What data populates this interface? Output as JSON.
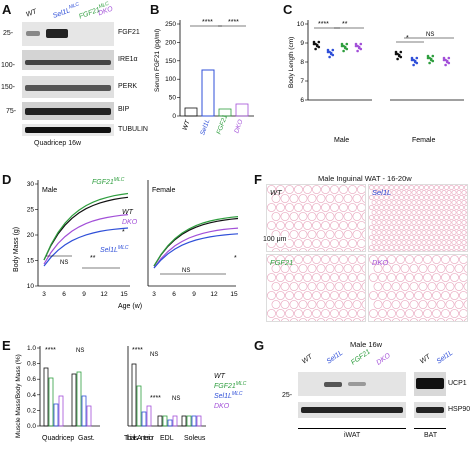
{
  "panel_letters": [
    "A",
    "B",
    "C",
    "D",
    "F",
    "E",
    "G"
  ],
  "colors": {
    "wt": "#111111",
    "fgf21": "#2e9e3e",
    "sel1l": "#2f4fd8",
    "dko": "#a24fd8",
    "pink": "#f2c8d8"
  },
  "panelA": {
    "groups": [
      "WT",
      "Sel1L",
      "FGF21",
      "DKO"
    ],
    "group_sup": [
      "",
      "MLC",
      "MLC",
      ""
    ],
    "mw": [
      "25-",
      "100-",
      "150-",
      "75-",
      ""
    ],
    "bands": [
      "FGF21",
      "IRE1α",
      "PERK",
      "BIP",
      "TUBULIN"
    ],
    "caption": "Quadricep 16w"
  },
  "panelB": {
    "ylabel": "Serum FGF21 (pg/ml)",
    "ticks": [
      "0",
      "50",
      "100",
      "150",
      "200",
      "250"
    ],
    "sig": [
      "****",
      "****"
    ],
    "groups": [
      "WT",
      "Sel1L",
      "FGF21",
      "DKO"
    ],
    "sup": "MLC"
  },
  "panelC": {
    "ylabel": "Body Length (cm)",
    "ticks": [
      "6",
      "7",
      "8",
      "9",
      "10"
    ],
    "sig_male": [
      "****",
      "**"
    ],
    "sig_female": [
      "*",
      "NS"
    ],
    "male": "Male",
    "female": "Female"
  },
  "panelD": {
    "ylabel": "Body Mass (g)",
    "xlabel": "Age (w)",
    "male": "Male",
    "female": "Female",
    "ticks_y": [
      "10",
      "15",
      "20",
      "25",
      "30"
    ],
    "ticks_x": [
      "3",
      "6",
      "9",
      "12",
      "15"
    ],
    "legend": [
      "FGF21",
      "WT",
      "DKO",
      "Sel1L"
    ],
    "sup": "MLC",
    "ns": "NS",
    "ns2": "NS",
    "sig": [
      "**",
      "*",
      "*"
    ]
  },
  "panelF": {
    "title": "Male Inguinal WAT - 16-20w",
    "labels": [
      "WT",
      "Sel1L",
      "FGF21",
      "DKO"
    ],
    "scale": "100 μm"
  },
  "panelE": {
    "ylabel": "Muscle Mass/Body Mass (%)",
    "ticks": [
      "0.0",
      "0.2",
      "0.4",
      "0.6",
      "0.8",
      "1.0"
    ],
    "cats1": [
      "Quadricep",
      "Gast."
    ],
    "cats2": [
      "Tibialis Anterior",
      "EDL",
      "Soleus"
    ],
    "sig": [
      "****",
      "NS"
    ],
    "legend": [
      "WT",
      "FGF21",
      "Sel1L",
      "DKO"
    ],
    "sup": "MLC"
  },
  "panelG": {
    "title": "Male 16w",
    "groups": [
      "WT",
      "Sel1L",
      "FGF21",
      "DKO",
      "WT",
      "Sel1L"
    ],
    "mw": "25-",
    "bands": [
      "UCP1",
      "HSP90"
    ],
    "footer": [
      "iWAT",
      "BAT"
    ],
    "sup": "MLC"
  }
}
